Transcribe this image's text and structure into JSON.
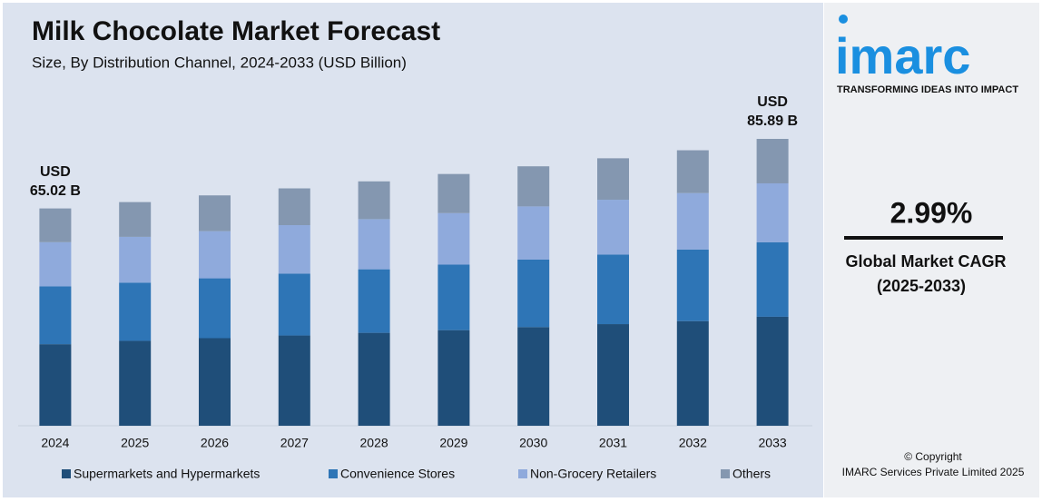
{
  "chart_data": {
    "type": "stacked-bar",
    "title": "Milk Chocolate Market Forecast",
    "subtitle": "Size, By Distribution Channel, 2024-2033 (USD Billion)",
    "categories": [
      "2024",
      "2025",
      "2026",
      "2027",
      "2028",
      "2029",
      "2030",
      "2031",
      "2032",
      "2033"
    ],
    "series": [
      {
        "name": "Supermarkets and Hypermarkets",
        "color": "#1f4e79",
        "values": [
          24.4,
          25.4,
          26.2,
          27.0,
          27.8,
          28.6,
          29.5,
          30.4,
          31.3,
          32.6
        ]
      },
      {
        "name": "Convenience Stores",
        "color": "#2e75b6",
        "values": [
          17.3,
          17.4,
          17.9,
          18.5,
          19.0,
          19.6,
          20.2,
          20.8,
          21.4,
          22.3
        ]
      },
      {
        "name": "Non-Grocery Retailers",
        "color": "#8faadc",
        "values": [
          13.2,
          13.7,
          14.1,
          14.5,
          15.0,
          15.4,
          15.9,
          16.4,
          16.9,
          17.6
        ]
      },
      {
        "name": "Others",
        "color": "#8497b0",
        "values": [
          10.1,
          10.4,
          10.7,
          11.0,
          11.3,
          11.7,
          12.0,
          12.4,
          12.8,
          13.3
        ]
      }
    ],
    "total_labels": [
      {
        "category": "2024",
        "value": 65.02,
        "label": [
          "USD",
          "65.02 B"
        ]
      },
      {
        "category": "2033",
        "value": 85.89,
        "label": [
          "USD",
          "85.89 B"
        ]
      }
    ],
    "legend": "bottom"
  },
  "sidebar": {
    "logo": "imarc",
    "tagline": "TRANSFORMING IDEAS INTO IMPACT",
    "cagr": "2.99%",
    "cagr_label": [
      "Global Market CAGR",
      "(2025-2033)"
    ],
    "copyright": [
      "© Copyright",
      "IMARC Services Private Limited 2025"
    ]
  }
}
